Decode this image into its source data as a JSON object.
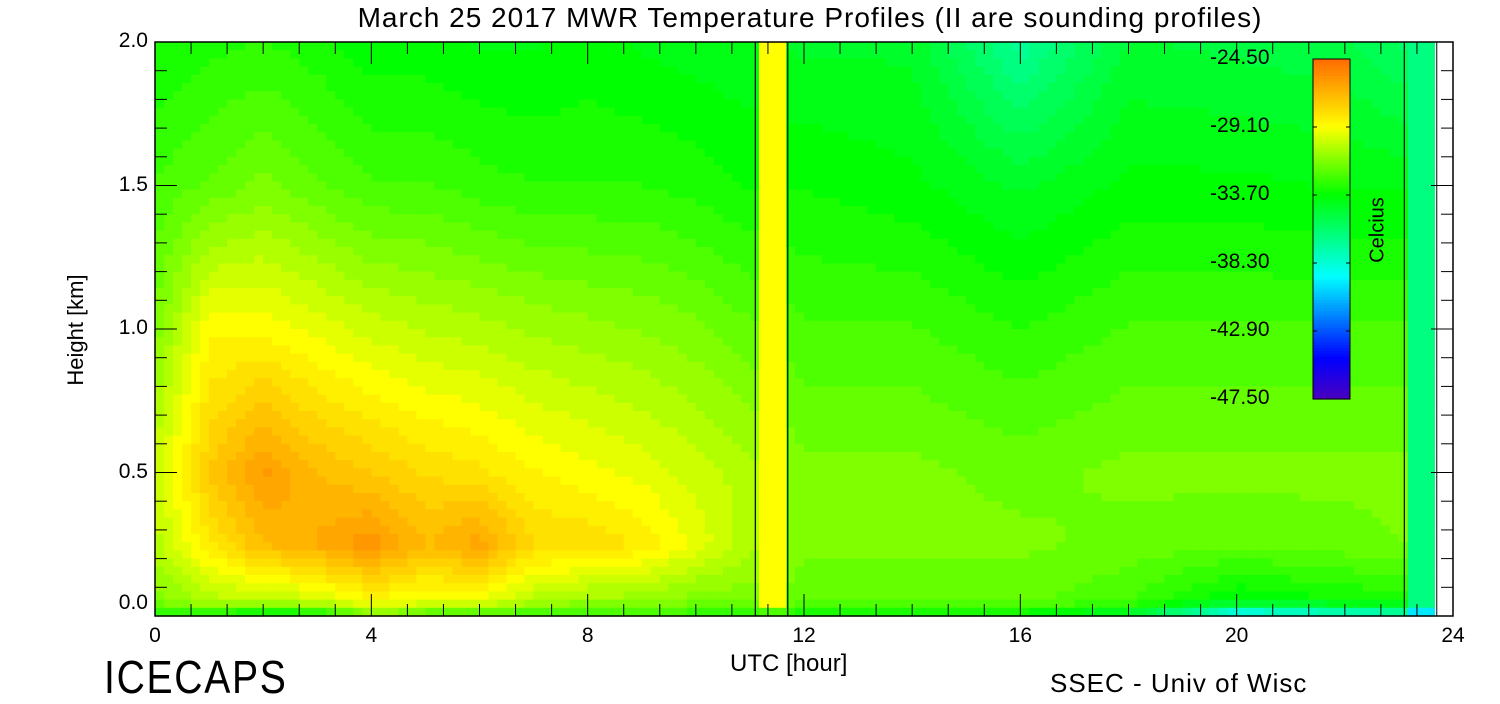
{
  "chart_data": {
    "type": "heatmap",
    "title": "March 25 2017 MWR Temperature Profiles (II are sounding profiles)",
    "xlabel": "UTC [hour]",
    "ylabel": "Height [km]",
    "xlim": [
      0,
      24
    ],
    "ylim": [
      0,
      2
    ],
    "x_ticks": [
      "0",
      "4",
      "8",
      "12",
      "16",
      "20",
      "24"
    ],
    "y_ticks": [
      "0.0",
      "0.5",
      "1.0",
      "1.5",
      "2.0"
    ],
    "colorbar": {
      "label": "Celcius",
      "range": [
        -47.5,
        -24.5
      ],
      "ticks": [
        "-24.50",
        "-29.10",
        "-33.70",
        "-38.30",
        "-42.90",
        "-47.50"
      ],
      "colors": [
        "#4a00c0",
        "#0000ff",
        "#00ffff",
        "#00ff00",
        "#ffff00",
        "#ff6a00"
      ]
    },
    "grid_x_hours": [
      0,
      1,
      2,
      3,
      4,
      5,
      6,
      7,
      8,
      9,
      10,
      11,
      12,
      14,
      16,
      18,
      20,
      22,
      24
    ],
    "grid_y_km": [
      0.0,
      0.05,
      0.25,
      0.5,
      1.0,
      1.5,
      2.0
    ],
    "temperature_c": [
      [
        -33.5,
        -33.5,
        -34.5,
        -34.0,
        -31.5,
        -32.5,
        -32.5,
        -33.0,
        -33.0,
        -33.0,
        -33.0,
        -33.0,
        -33.5,
        -33.8,
        -34.0,
        -35.0,
        -40.0,
        -39.0,
        -38.0
      ],
      [
        -31.5,
        -30.5,
        -30.5,
        -30.0,
        -29.0,
        -29.5,
        -29.5,
        -30.5,
        -31.0,
        -31.0,
        -31.5,
        -31.5,
        -32.0,
        -32.0,
        -32.0,
        -32.5,
        -34.0,
        -33.5,
        -33.0
      ],
      [
        -30.5,
        -28.5,
        -27.0,
        -26.5,
        -25.8,
        -27.0,
        -26.3,
        -28.0,
        -28.0,
        -28.5,
        -29.5,
        -30.5,
        -31.5,
        -31.5,
        -31.5,
        -31.8,
        -32.0,
        -31.8,
        -31.5
      ],
      [
        -30.0,
        -27.5,
        -26.0,
        -27.0,
        -27.5,
        -28.0,
        -28.3,
        -28.8,
        -29.2,
        -29.5,
        -30.0,
        -30.5,
        -31.5,
        -31.5,
        -31.8,
        -31.5,
        -31.5,
        -31.5,
        -31.5
      ],
      [
        -31.5,
        -29.0,
        -29.0,
        -29.5,
        -30.0,
        -30.3,
        -30.5,
        -30.8,
        -31.0,
        -31.2,
        -31.5,
        -32.0,
        -32.5,
        -32.5,
        -33.0,
        -32.5,
        -32.5,
        -32.5,
        -32.5
      ],
      [
        -32.5,
        -32.0,
        -31.5,
        -32.0,
        -32.5,
        -32.5,
        -32.8,
        -33.0,
        -33.0,
        -33.0,
        -33.2,
        -33.5,
        -33.5,
        -33.8,
        -34.5,
        -33.8,
        -33.8,
        -34.0,
        -34.0
      ],
      [
        -33.5,
        -33.2,
        -33.0,
        -33.3,
        -33.8,
        -33.8,
        -34.0,
        -34.0,
        -33.8,
        -34.0,
        -34.2,
        -34.3,
        -34.5,
        -34.5,
        -37.0,
        -34.8,
        -35.0,
        -35.2,
        -36.5
      ]
    ],
    "soundings": [
      {
        "start_hour": 11.1,
        "end_hour": 11.7,
        "temp_c": -29.3
      },
      {
        "start_hour": 23.1,
        "end_hour": 23.7,
        "temp_c": -36.5
      }
    ],
    "no_data_after_hour": 23.7,
    "legend": "top-right"
  },
  "footer": {
    "logo": "ICECAPS",
    "credit": "SSEC - Univ of Wisc"
  }
}
